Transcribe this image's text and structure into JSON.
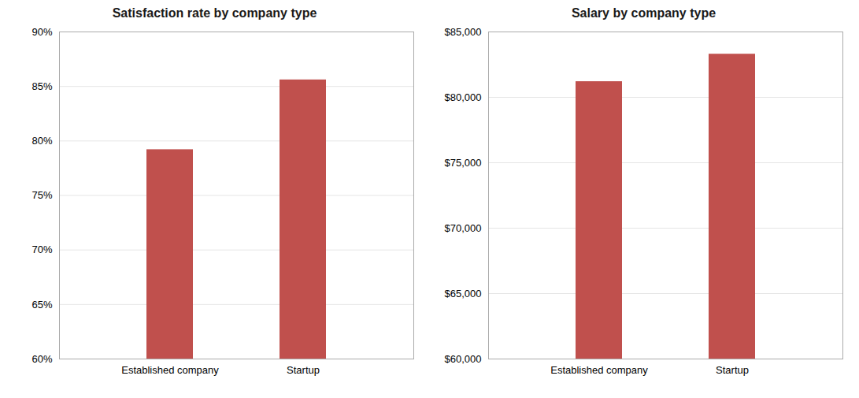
{
  "chart_data": [
    {
      "type": "bar",
      "title": "Satisfaction rate by company type",
      "categories": [
        "Established company",
        "Startup"
      ],
      "values": [
        0.792,
        0.856
      ],
      "color": "#c0504d",
      "ylim": [
        0.6,
        0.9
      ],
      "yticks": [
        {
          "value": 0.6,
          "label": "60%"
        },
        {
          "value": 0.65,
          "label": "65%"
        },
        {
          "value": 0.7,
          "label": "70%"
        },
        {
          "value": 0.75,
          "label": "75%"
        },
        {
          "value": 0.8,
          "label": "80%"
        },
        {
          "value": 0.85,
          "label": "85%"
        },
        {
          "value": 0.9,
          "label": "90%"
        }
      ],
      "grid": true
    },
    {
      "type": "bar",
      "title": "Salary by company type",
      "categories": [
        "Established company",
        "Startup"
      ],
      "values": [
        81200,
        83300
      ],
      "color": "#c0504d",
      "ylim": [
        60000,
        85000
      ],
      "yticks": [
        {
          "value": 60000,
          "label": "$60,000"
        },
        {
          "value": 65000,
          "label": "$65,000"
        },
        {
          "value": 70000,
          "label": "$70,000"
        },
        {
          "value": 75000,
          "label": "$75,000"
        },
        {
          "value": 80000,
          "label": "$80,000"
        },
        {
          "value": 85000,
          "label": "$85,000"
        }
      ],
      "grid": true
    }
  ]
}
